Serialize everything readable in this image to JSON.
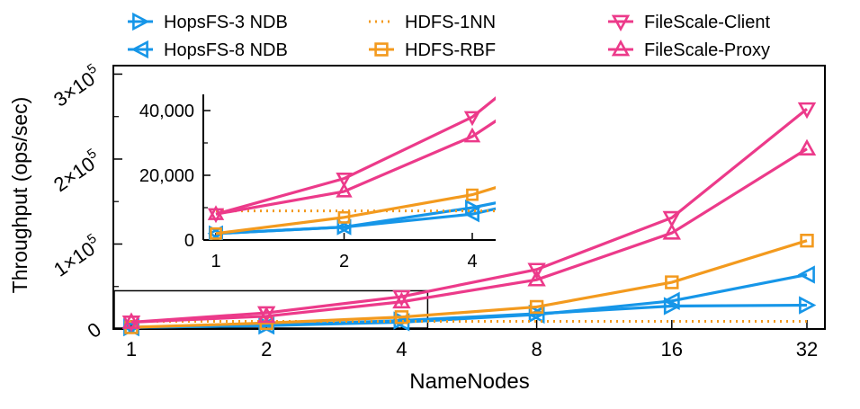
{
  "chart_data": {
    "type": "line",
    "xlabel": "NameNodes",
    "ylabel": "Throughput (ops/sec)",
    "x_scale": "log2",
    "x": [
      1,
      2,
      4,
      8,
      16,
      32
    ],
    "x_tick_labels": [
      "1",
      "2",
      "4",
      "8",
      "16",
      "32"
    ],
    "ylim": [
      0,
      310000
    ],
    "y_ticks": [
      0,
      100000,
      200000,
      300000
    ],
    "y_tick_labels": [
      {
        "base": "0",
        "exp": ""
      },
      {
        "base": "1×10",
        "exp": "5"
      },
      {
        "base": "2×10",
        "exp": "5"
      },
      {
        "base": "3×10",
        "exp": "5"
      }
    ],
    "grid": false,
    "legend_placement": "top, 3 columns",
    "series": [
      {
        "name": "HopsFS-3 NDB",
        "color": "#1696e8",
        "marker": "triangle-right",
        "values": [
          2000,
          4000,
          10000,
          18000,
          27000,
          28000
        ]
      },
      {
        "name": "HopsFS-8 NDB",
        "color": "#1696e8",
        "marker": "triangle-left",
        "values": [
          2000,
          4000,
          8000,
          17000,
          33000,
          64000
        ]
      },
      {
        "name": "HDFS-1NN",
        "color": "#f39a1e",
        "marker": "none",
        "dashed": true,
        "values": [
          9000,
          9000,
          9000,
          9000,
          9000,
          9000
        ]
      },
      {
        "name": "HDFS-RBF",
        "color": "#f39a1e",
        "marker": "square",
        "values": [
          2000,
          7000,
          14000,
          26000,
          55000,
          104000
        ]
      },
      {
        "name": "FileScale-Client",
        "color": "#ec3a8a",
        "marker": "triangle-down",
        "values": [
          8000,
          19000,
          38000,
          70000,
          131000,
          259000
        ]
      },
      {
        "name": "FileScale-Proxy",
        "color": "#ec3a8a",
        "marker": "triangle-up",
        "values": [
          8000,
          15000,
          32000,
          58000,
          113000,
          212000
        ]
      }
    ],
    "inset": {
      "x": [
        1,
        2,
        4
      ],
      "x_tick_labels": [
        "1",
        "2",
        "4"
      ],
      "ylim": [
        0,
        45000
      ],
      "y_ticks": [
        0,
        20000,
        40000
      ],
      "y_tick_labels": [
        "0",
        "20,000",
        "40,000"
      ]
    }
  }
}
